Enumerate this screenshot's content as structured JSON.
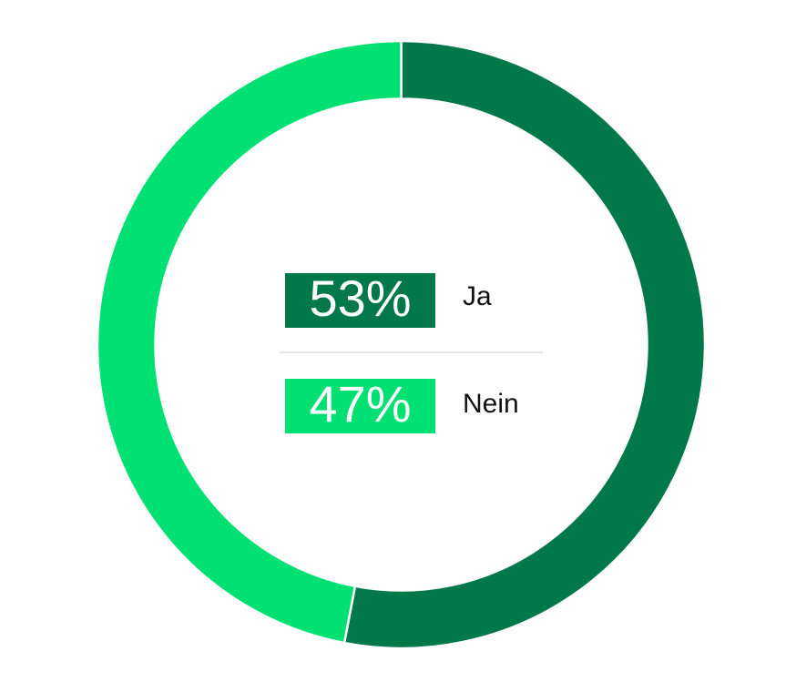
{
  "chart_data": {
    "type": "pie",
    "donut": true,
    "categories": [
      "Ja",
      "Nein"
    ],
    "values": [
      53,
      47
    ],
    "value_labels": [
      "53%",
      "47%"
    ],
    "colors": [
      "#00784a",
      "#00e073"
    ]
  }
}
